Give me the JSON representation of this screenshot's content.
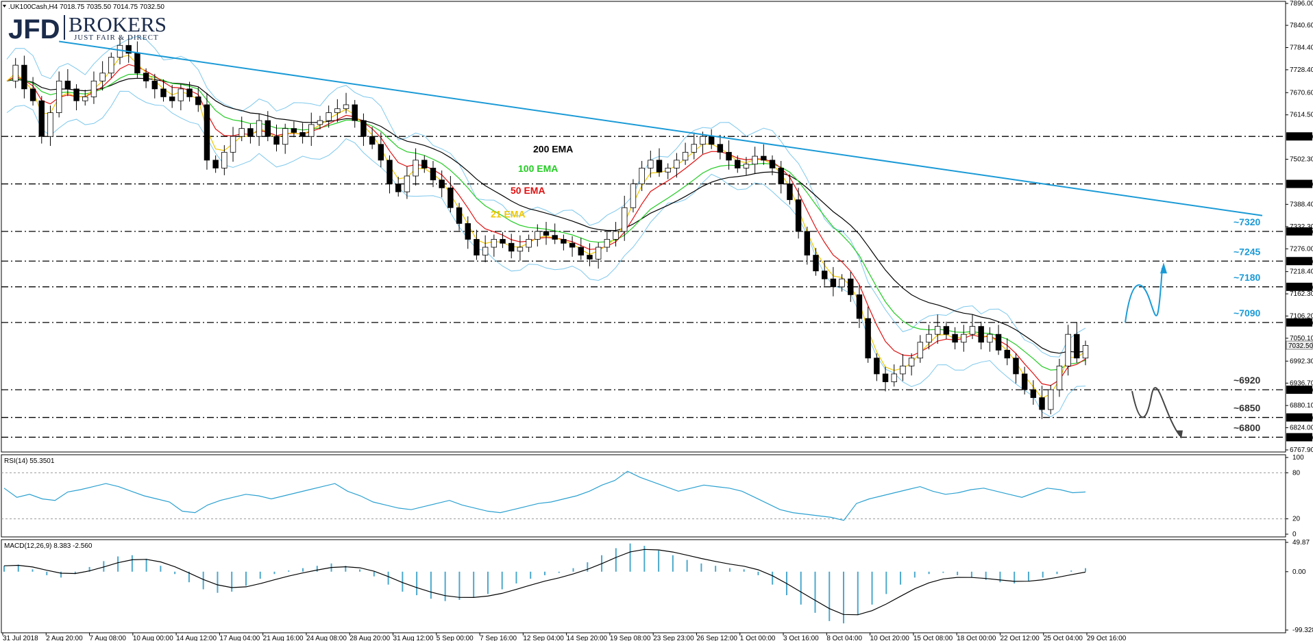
{
  "header": {
    "symbol": ".UK100Cash,H4",
    "ohlc": "7018.75 7035.50 7014.75 7032.50"
  },
  "logo": {
    "main": "JFD",
    "brand": "BROKERS",
    "tagline": "JUST FAIR & DIRECT"
  },
  "colors": {
    "ema200": "#000000",
    "ema100": "#22cc22",
    "ema50": "#e01010",
    "ema21": "#f0c800",
    "bands": "#7ec8ec",
    "trendline": "#1a9ad6",
    "macd_hist": "#4aa8cc",
    "level_label": "#1a9ad6",
    "bear_label": "#333333"
  },
  "chart_data": [
    {
      "type": "candlestick",
      "name": "price",
      "y_ticks": [
        "7896.00",
        "7840.60",
        "7784.40",
        "7728.40",
        "7670.60",
        "7614.50",
        "7502.30",
        "7388.40",
        "7332.30",
        "7276.00",
        "7218.40",
        "7162.30",
        "7106.20",
        "7050.10",
        "6992.30",
        "6936.70",
        "6880.10",
        "6824.00",
        "6767.90"
      ],
      "ylim": [
        6767.9,
        7896.0
      ],
      "x_labels": [
        "31 Jul 2018",
        "2 Aug 20:00",
        "7 Aug 08:00",
        "10 Aug 00:00",
        "14 Aug 12:00",
        "17 Aug 04:00",
        "21 Aug 16:00",
        "24 Aug 08:00",
        "28 Aug 20:00",
        "31 Aug 12:00",
        "5 Sep 00:00",
        "7 Sep 16:00",
        "12 Sep 04:00",
        "14 Sep 20:00",
        "19 Sep 08:00",
        "23 Sep 23:00",
        "26 Sep 12:00",
        "1 Oct 00:00",
        "3 Oct 16:00",
        "8 Oct 04:00",
        "10 Oct 20:00",
        "15 Oct 08:00",
        "18 Oct 00:00",
        "22 Oct 12:00",
        "25 Oct 04:00",
        "29 Oct 16:00"
      ],
      "levels": [
        {
          "value": 7560.0,
          "tag": "7560.00",
          "label": ""
        },
        {
          "value": 7440.0,
          "tag": "7440.00",
          "label": ""
        },
        {
          "value": 7320.0,
          "tag": "7320.00",
          "label": "~7320"
        },
        {
          "value": 7245.0,
          "tag": "7245.00",
          "label": "~7245"
        },
        {
          "value": 7180.0,
          "tag": "7180.00",
          "label": "~7180"
        },
        {
          "value": 7090.0,
          "tag": "7090.00",
          "label": "~7090"
        },
        {
          "value": 6920.0,
          "tag": "6920.00",
          "label": "~6920"
        },
        {
          "value": 6850.0,
          "tag": "6850.00",
          "label": "~6850"
        },
        {
          "value": 6800.0,
          "tag": "6800.00",
          "label": "~6800"
        }
      ],
      "current_price_tag": "7032.50",
      "ema_labels": [
        "200 EMA",
        "100 EMA",
        "50 EMA",
        "21 EMA"
      ],
      "trendline": {
        "start": [
          "7 Aug 08:00",
          7800
        ],
        "end": [
          "29 Oct 16:00",
          7360
        ]
      },
      "approx_path": [
        7700,
        7740,
        7680,
        7650,
        7560,
        7620,
        7700,
        7680,
        7650,
        7660,
        7700,
        7720,
        7760,
        7790,
        7770,
        7720,
        7700,
        7680,
        7660,
        7650,
        7680,
        7660,
        7640,
        7500,
        7480,
        7520,
        7560,
        7580,
        7560,
        7600,
        7560,
        7540,
        7580,
        7570,
        7560,
        7590,
        7600,
        7620,
        7630,
        7640,
        7600,
        7560,
        7540,
        7500,
        7440,
        7420,
        7460,
        7500,
        7480,
        7450,
        7430,
        7380,
        7340,
        7300,
        7260,
        7280,
        7300,
        7290,
        7270,
        7280,
        7300,
        7320,
        7310,
        7300,
        7290,
        7280,
        7260,
        7250,
        7280,
        7300,
        7320,
        7380,
        7440,
        7480,
        7500,
        7470,
        7480,
        7500,
        7520,
        7540,
        7560,
        7540,
        7520,
        7500,
        7480,
        7490,
        7510,
        7500,
        7480,
        7440,
        7400,
        7320,
        7260,
        7220,
        7200,
        7180,
        7200,
        7160,
        7100,
        7000,
        6960,
        6940,
        6960,
        6980,
        7000,
        7040,
        7060,
        7080,
        7060,
        7040,
        7060,
        7080,
        7040,
        7060,
        7020,
        7000,
        6960,
        6920,
        6900,
        6870,
        6920,
        6980,
        7060,
        7000,
        7032
      ]
    },
    {
      "type": "line",
      "name": "RSI(14)",
      "title": "RSI(14) 55.3501",
      "y_ticks": [
        "100",
        "80",
        "20",
        "0"
      ],
      "ylim": [
        0,
        100
      ],
      "approx_values": [
        60,
        48,
        52,
        46,
        44,
        55,
        58,
        62,
        66,
        62,
        56,
        50,
        46,
        42,
        30,
        28,
        38,
        44,
        48,
        52,
        50,
        46,
        50,
        54,
        58,
        62,
        66,
        56,
        50,
        42,
        38,
        34,
        32,
        36,
        40,
        44,
        38,
        34,
        30,
        28,
        32,
        36,
        40,
        42,
        46,
        50,
        56,
        64,
        70,
        82,
        74,
        68,
        62,
        56,
        60,
        64,
        62,
        60,
        56,
        48,
        40,
        32,
        28,
        26,
        24,
        22,
        18,
        40,
        46,
        50,
        54,
        58,
        62,
        56,
        52,
        54,
        58,
        60,
        56,
        52,
        48,
        54,
        60,
        58,
        54,
        55
      ]
    },
    {
      "type": "bar",
      "name": "MACD(12,26,9)",
      "title": "MACD(12,26,9) 8.383 -2.560",
      "y_ticks": [
        "49.87",
        "0.00",
        "-99.328"
      ],
      "ylim": [
        -99.328,
        49.87
      ],
      "approx_histogram": [
        10,
        12,
        4,
        -6,
        -10,
        -4,
        8,
        18,
        26,
        28,
        22,
        10,
        -4,
        -18,
        -30,
        -36,
        -34,
        -24,
        -12,
        -4,
        2,
        6,
        10,
        14,
        10,
        4,
        -8,
        -22,
        -34,
        -40,
        -46,
        -50,
        -48,
        -44,
        -38,
        -30,
        -20,
        -12,
        -6,
        -2,
        6,
        16,
        28,
        40,
        48,
        44,
        36,
        28,
        20,
        14,
        10,
        6,
        4,
        -6,
        -22,
        -40,
        -56,
        -70,
        -84,
        -88,
        -74,
        -56,
        -38,
        -22,
        -10,
        -4,
        -2,
        -6,
        -10,
        -14,
        -18,
        -20,
        -16,
        -10,
        -4,
        2,
        6
      ]
    }
  ]
}
